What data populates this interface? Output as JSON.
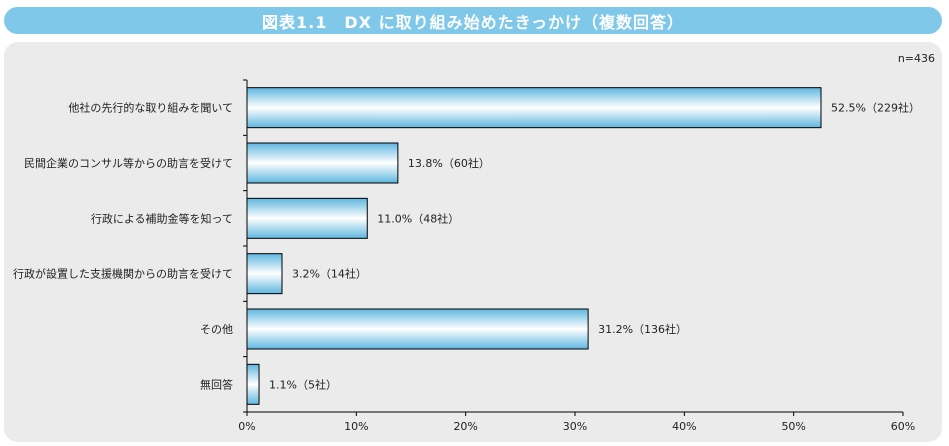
{
  "header": {
    "title": "図表1.1　DX に取り組み始めたきっかけ（複数回答）"
  },
  "sample_size": "n=436",
  "chart_data": {
    "type": "bar",
    "orientation": "horizontal",
    "categories": [
      "他社の先行的な取り組みを聞いて",
      "民間企業のコンサル等からの助言を受けて",
      "行政による補助金等を知って",
      "行政が設置した支援機関からの助言を受けて",
      "その他",
      "無回答"
    ],
    "values": [
      52.5,
      13.8,
      11.0,
      3.2,
      31.2,
      1.1
    ],
    "data_labels": [
      "52.5%（229社）",
      "13.8%（60社）",
      "11.0%（48社）",
      "3.2%（14社）",
      "31.2%（136社）",
      "1.1%（5社）"
    ],
    "xlim": [
      0,
      60
    ],
    "x_ticks": [
      0,
      10,
      20,
      30,
      40,
      50,
      60
    ],
    "x_tick_labels": [
      "0%",
      "10%",
      "20%",
      "30%",
      "40%",
      "50%",
      "60%"
    ],
    "xlabel": "",
    "ylabel": "",
    "grid": false,
    "colors": {
      "bar_edge": "#5fb6e0",
      "bar_center": "#ffffff",
      "bar_outline": "#000000"
    }
  }
}
